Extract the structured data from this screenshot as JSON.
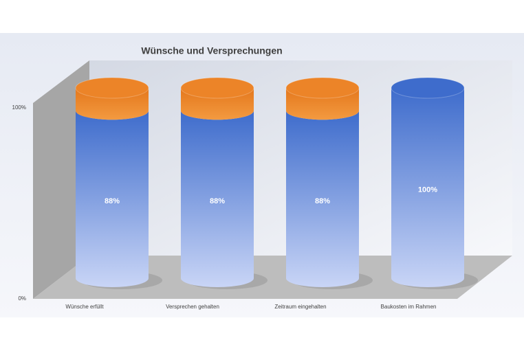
{
  "chart_data": {
    "type": "stacked-cylinder",
    "title": "Wünsche und Versprechungen",
    "categories": [
      "Wünsche erfüllt",
      "Versprechen gehalten",
      "Zeitraum eingehalten",
      "Baukosten im Rahmen"
    ],
    "series": [
      {
        "color": "#3e6ccc",
        "values": [
          88,
          88,
          88,
          100
        ],
        "value_labels": [
          "88%",
          "88%",
          "88%",
          "100%"
        ]
      },
      {
        "color": "#ec8428",
        "values": [
          12,
          12,
          12,
          0
        ]
      }
    ],
    "ylim": [
      0,
      100
    ],
    "yticks": [
      {
        "value": 0,
        "label": "0%"
      },
      {
        "value": 100,
        "label": "100%"
      }
    ]
  }
}
